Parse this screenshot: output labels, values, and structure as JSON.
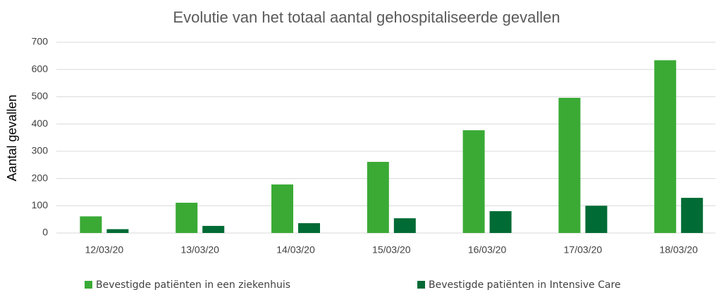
{
  "chart_data": {
    "type": "bar",
    "title": "Evolutie van het totaal aantal gehospitaliseerde gevallen",
    "y_label": "Aantal gevallen",
    "categories": [
      "12/03/20",
      "13/03/20",
      "14/03/20",
      "15/03/20",
      "16/03/20",
      "17/03/20",
      "18/03/20"
    ],
    "series": [
      {
        "name": "Bevestigde patiënten in een ziekenhuis",
        "color": "#3aaa35",
        "values": [
          61,
          111,
          178,
          261,
          377,
          496,
          634
        ]
      },
      {
        "name": "Bevestigde patiënten in Intensive Care",
        "color": "#006b35",
        "values": [
          14,
          26,
          36,
          54,
          80,
          100,
          129
        ]
      }
    ],
    "ylim": [
      0,
      700
    ],
    "yticks": [
      0,
      100,
      200,
      300,
      400,
      500,
      600,
      700
    ],
    "grid": true,
    "legend": "bottom"
  }
}
